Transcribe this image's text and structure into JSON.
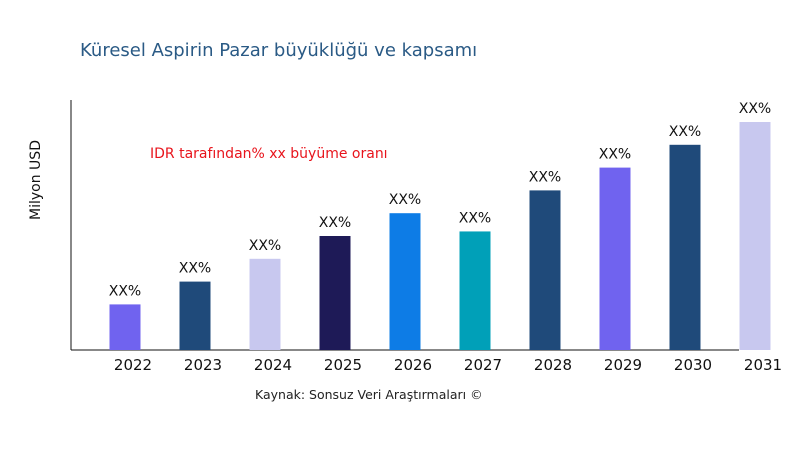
{
  "chart_data": {
    "type": "bar",
    "title": "Küresel Aspirin Pazar büyüklüğü ve kapsamı",
    "xlabel": "",
    "ylabel": "Milyon USD",
    "annotation": "IDR tarafından% xx büyüme oranı",
    "source": "Kaynak: Sonsuz Veri Araştırmaları ©",
    "categories": [
      "2022",
      "2023",
      "2024",
      "2025",
      "2026",
      "2027",
      "2028",
      "2029",
      "2030",
      "2031"
    ],
    "values": [
      20,
      30,
      40,
      50,
      60,
      52,
      70,
      80,
      90,
      100
    ],
    "data_labels": [
      "XX%",
      "XX%",
      "XX%",
      "XX%",
      "XX%",
      "XX%",
      "XX%",
      "XX%",
      "XX%",
      "XX%"
    ],
    "colors": [
      "#7063ef",
      "#1f4a7a",
      "#c8c8ef",
      "#1e1a57",
      "#0d7ce6",
      "#00a0b8",
      "#1f4a7a",
      "#7063ef",
      "#1f4a7a",
      "#c8c8ef"
    ],
    "ylim": [
      0,
      100
    ],
    "y_ticks_shown": false,
    "grid": false,
    "legend": "none"
  }
}
